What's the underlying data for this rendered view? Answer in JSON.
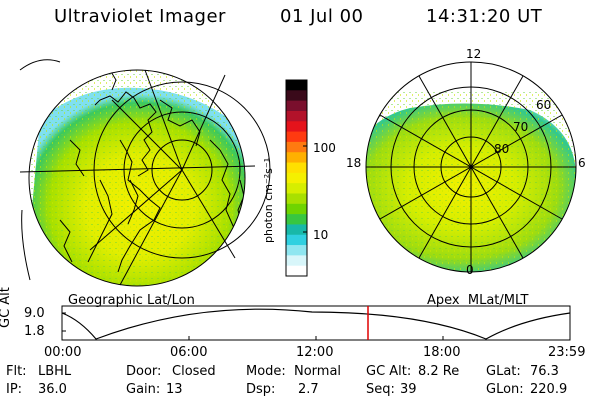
{
  "header": {
    "title": "Ultraviolet Imager",
    "date": "01 Jul 00",
    "time": "14:31:20 UT"
  },
  "colorbar": {
    "unit_label": "photon cm⁻²s⁻¹",
    "ticks": [
      "100",
      "10"
    ],
    "colors": [
      "#000000",
      "#3a0a1a",
      "#7a0f2d",
      "#b3122a",
      "#e5131b",
      "#ff3a10",
      "#ff7a10",
      "#ffb000",
      "#ffe000",
      "#f5f000",
      "#d6ee00",
      "#a8e000",
      "#6fd400",
      "#38c640",
      "#18b8a8",
      "#30d0e0",
      "#8fe6f0",
      "#d8f6fa",
      "#ffffff"
    ]
  },
  "left_panel": {
    "label": "Geographic Lat/Lon"
  },
  "right_panel": {
    "label": "Apex  MLat/MLT",
    "mlt_labels": {
      "top": "12",
      "bottom": "0",
      "left": "18",
      "right": "6"
    },
    "lat_labels": [
      "60",
      "70",
      "80"
    ]
  },
  "orbit_plot": {
    "ylabel": "GC Alt",
    "yticks": [
      "9.0",
      "1.8"
    ],
    "xticks": [
      "00:00",
      "06:00",
      "12:00",
      "18:00",
      "23:59"
    ],
    "marker_time": "14:31"
  },
  "info": {
    "filter_label": "Flt:",
    "filter": "LBHL",
    "ip_label": "IP:",
    "ip": "36.0",
    "door_label": "Door:",
    "door": "Closed",
    "gain_label": "Gain:",
    "gain": "13",
    "mode_label": "Mode:",
    "mode": "Normal",
    "dsp_label": "Dsp:",
    "dsp": "2.7",
    "gcalt_label": "GC Alt:",
    "gcalt": "8.2 Re",
    "seq_label": "Seq:",
    "seq": "39",
    "glat_label": "GLat:",
    "glat": "76.3",
    "glon_label": "GLon:",
    "glon": "220.9"
  }
}
